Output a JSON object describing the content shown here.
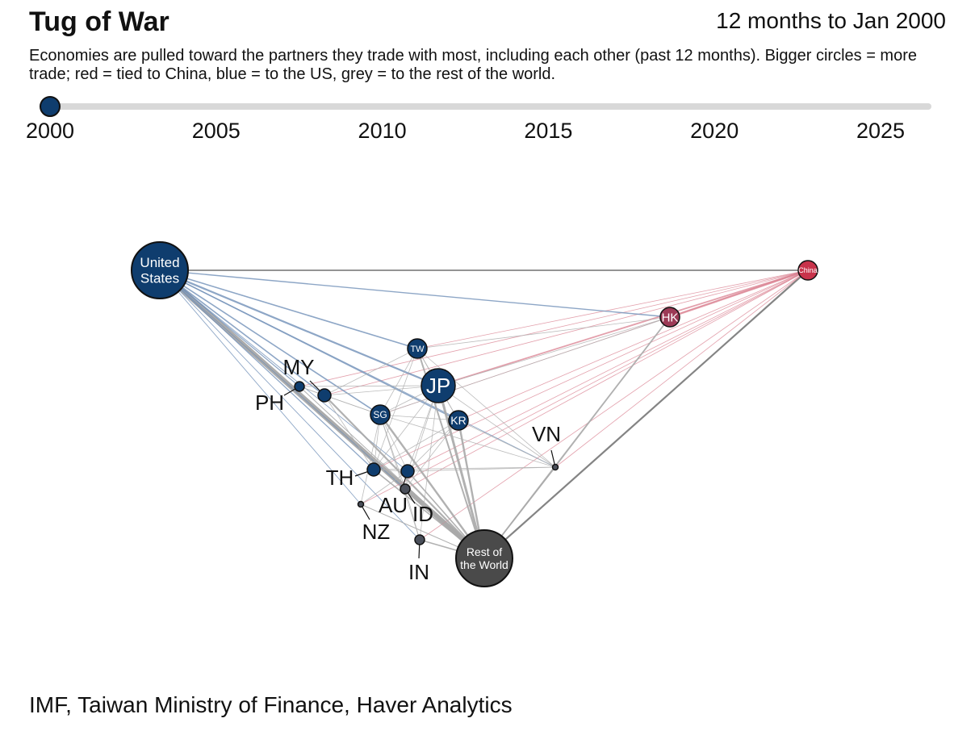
{
  "title": "Tug of War",
  "period": "12 months to Jan 2000",
  "subtitle": "Economies are pulled toward the partners they trade with most, including each other (past 12 months). Bigger circles = more trade; red = tied to China, blue = to the US, grey = to the rest of the world.",
  "source": "IMF, Taiwan Ministry of Finance, Haver Analytics",
  "timeline": {
    "years": [
      "2000",
      "2005",
      "2010",
      "2015",
      "2020",
      "2025"
    ],
    "current_year": 2000
  },
  "colors": {
    "us": "#0f3d6e",
    "china": "#c8334b",
    "rest": "#4a4a4a",
    "china_link": "#d98090",
    "us_link": "#7090b8",
    "rest_link": "#a8a8a8"
  },
  "nodes": [
    {
      "id": "US",
      "label": "United States",
      "label_inside": true,
      "tie": "us",
      "size": "xl"
    },
    {
      "id": "CN",
      "label": "China",
      "label_inside": true,
      "tie": "china",
      "size": "s"
    },
    {
      "id": "RW",
      "label": "Rest of the World",
      "label_inside": true,
      "tie": "rest",
      "size": "xl"
    },
    {
      "id": "HK",
      "label": "HK",
      "label_inside": true,
      "tie": "china",
      "size": "s"
    },
    {
      "id": "JP",
      "label": "JP",
      "label_inside": true,
      "tie": "us",
      "size": "l"
    },
    {
      "id": "TW",
      "label": "TW",
      "label_inside": true,
      "tie": "us",
      "size": "s"
    },
    {
      "id": "SG",
      "label": "SG",
      "label_inside": true,
      "tie": "us",
      "size": "s"
    },
    {
      "id": "KR",
      "label": "KR",
      "label_inside": true,
      "tie": "us",
      "size": "s"
    },
    {
      "id": "MY",
      "label": "MY",
      "label_inside": false,
      "tie": "us",
      "size": "xs"
    },
    {
      "id": "PH",
      "label": "PH",
      "label_inside": false,
      "tie": "us",
      "size": "xxs"
    },
    {
      "id": "TH",
      "label": "TH",
      "label_inside": false,
      "tie": "us",
      "size": "xs"
    },
    {
      "id": "AU",
      "label": "AU",
      "label_inside": false,
      "tie": "us",
      "size": "xs"
    },
    {
      "id": "ID",
      "label": "ID",
      "label_inside": false,
      "tie": "rest",
      "size": "xxs"
    },
    {
      "id": "NZ",
      "label": "NZ",
      "label_inside": false,
      "tie": "rest",
      "size": "xxxs"
    },
    {
      "id": "IN",
      "label": "IN",
      "label_inside": false,
      "tie": "rest",
      "size": "xxs"
    },
    {
      "id": "VN",
      "label": "VN",
      "label_inside": false,
      "tie": "rest",
      "size": "xxxs"
    }
  ]
}
